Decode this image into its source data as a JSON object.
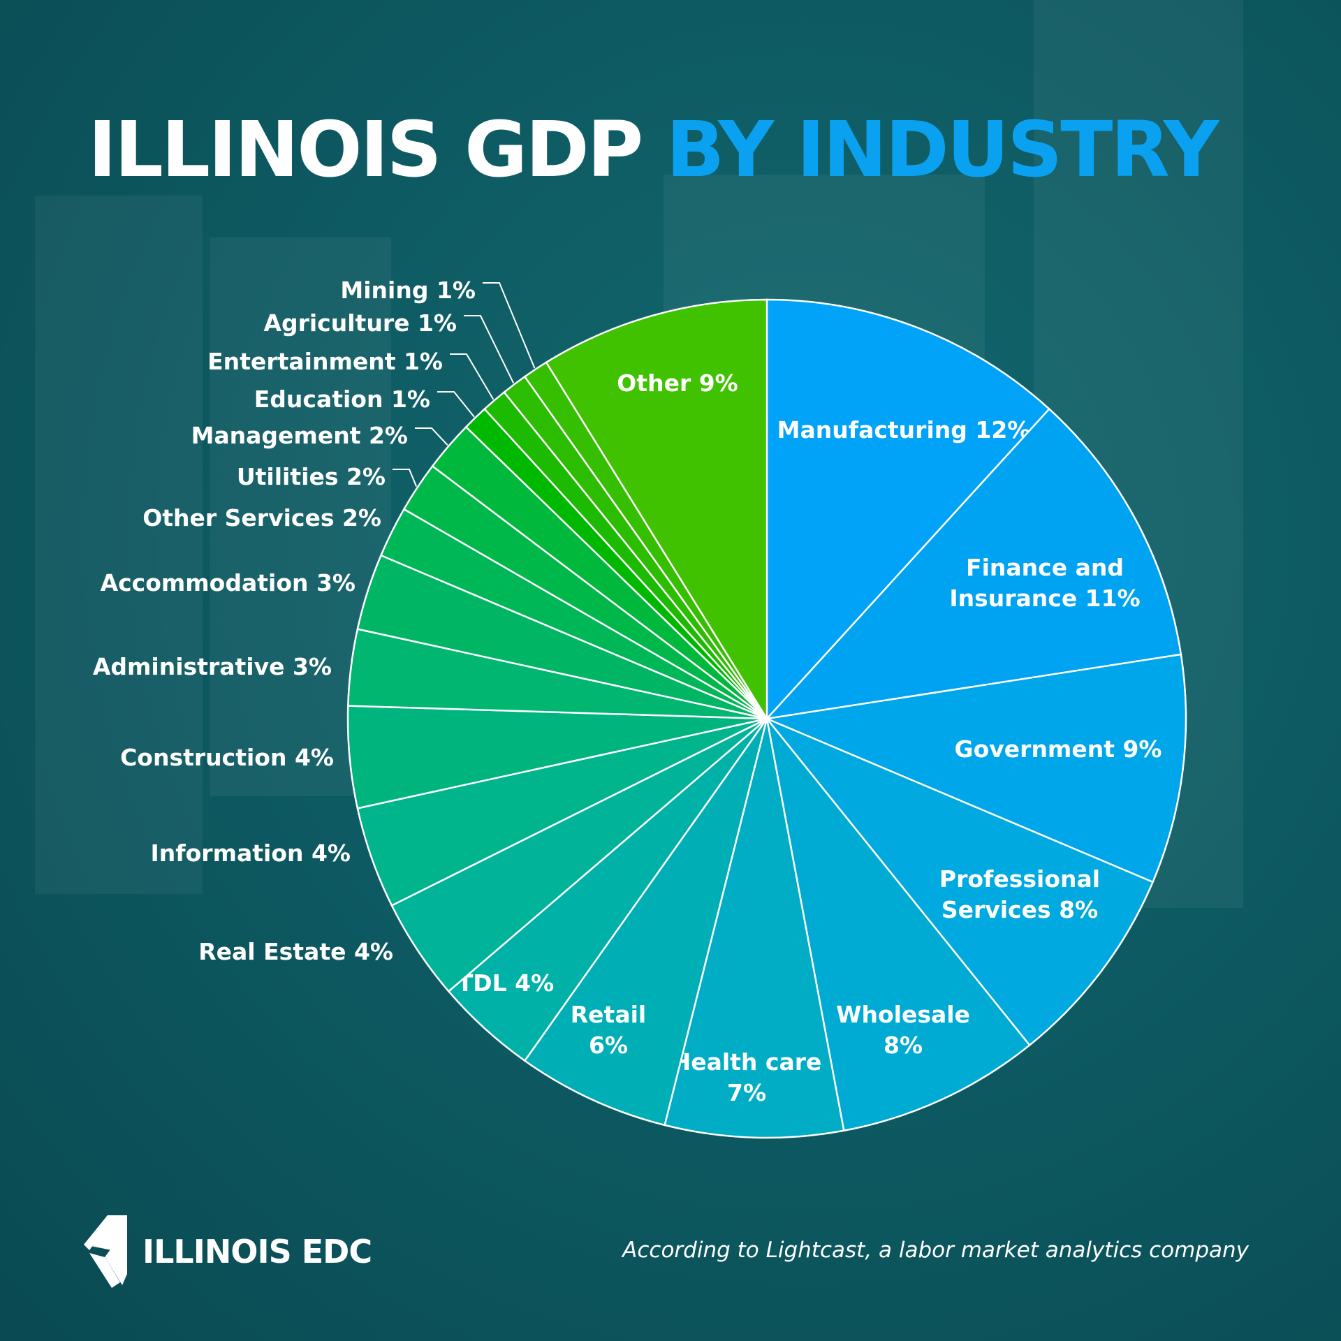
{
  "title": {
    "part1": "ILLINOIS GDP",
    "part2": "BY INDUSTRY",
    "part1_color": "#ffffff",
    "part2_color": "#0aa2f0"
  },
  "chart_data": {
    "type": "pie",
    "direction": "clockwise from top",
    "slices": [
      {
        "name": "Manufacturing",
        "label": [
          "Manufacturing 12%"
        ],
        "value": 12,
        "color": "#00a3f7",
        "placement": "inside"
      },
      {
        "name": "Finance and Insurance",
        "label": [
          "Finance and",
          "Insurance 11%"
        ],
        "value": 11,
        "color": "#00a3f2",
        "placement": "inside"
      },
      {
        "name": "Government",
        "label": [
          "Government 9%"
        ],
        "value": 9,
        "color": "#00a6ea",
        "placement": "inside"
      },
      {
        "name": "Professional Services",
        "label": [
          "Professional",
          "Services 8%"
        ],
        "value": 8,
        "color": "#00a9df",
        "placement": "inside"
      },
      {
        "name": "Wholesale",
        "label": [
          "Wholesale",
          "8%"
        ],
        "value": 8,
        "color": "#00abd3",
        "placement": "inside"
      },
      {
        "name": "Health care",
        "label": [
          "Health care",
          "7%"
        ],
        "value": 7,
        "color": "#00adc5",
        "placement": "inside"
      },
      {
        "name": "Retail",
        "label": [
          "Retail",
          "6%"
        ],
        "value": 6,
        "color": "#00afb6",
        "placement": "inside"
      },
      {
        "name": "TDL",
        "label": [
          "TDL 4%"
        ],
        "value": 4,
        "color": "#00b1a7",
        "placement": "inside"
      },
      {
        "name": "Real Estate",
        "label": [
          "Real Estate 4%"
        ],
        "value": 4,
        "color": "#00b399",
        "placement": "outside"
      },
      {
        "name": "Information",
        "label": [
          "Information 4%"
        ],
        "value": 4,
        "color": "#00b48b",
        "placement": "outside"
      },
      {
        "name": "Construction",
        "label": [
          "Construction 4%"
        ],
        "value": 4,
        "color": "#00b57d",
        "placement": "outside"
      },
      {
        "name": "Administrative",
        "label": [
          "Administrative 3%"
        ],
        "value": 3,
        "color": "#00b671",
        "placement": "outside"
      },
      {
        "name": "Accommodation",
        "label": [
          "Accommodation 3%"
        ],
        "value": 3,
        "color": "#00b664",
        "placement": "outside"
      },
      {
        "name": "Other Services",
        "label": [
          "Other Services 2%"
        ],
        "value": 2,
        "color": "#00b757",
        "placement": "outside"
      },
      {
        "name": "Utilities",
        "label": [
          "Utilities 2%"
        ],
        "value": 2,
        "color": "#00b84a",
        "placement": "outside-leader"
      },
      {
        "name": "Management",
        "label": [
          "Management 2%"
        ],
        "value": 2,
        "color": "#00b83b",
        "placement": "outside-leader"
      },
      {
        "name": "Education",
        "label": [
          "Education 1%"
        ],
        "value": 1,
        "color": "#00b800",
        "placement": "outside-leader"
      },
      {
        "name": "Entertainment",
        "label": [
          "Entertainment 1%"
        ],
        "value": 1,
        "color": "#1cba00",
        "placement": "outside-leader"
      },
      {
        "name": "Agriculture",
        "label": [
          "Agriculture 1%"
        ],
        "value": 1,
        "color": "#2cbc00",
        "placement": "outside-leader"
      },
      {
        "name": "Mining",
        "label": [
          "Mining 1%"
        ],
        "value": 1,
        "color": "#36be00",
        "placement": "outside-leader"
      },
      {
        "name": "Other",
        "label": [
          "Other 9%"
        ],
        "value": 9,
        "color": "#40c200",
        "placement": "inside"
      }
    ]
  },
  "footer": {
    "logo_text": "ILLINOIS EDC",
    "source": "According to Lightcast, a labor market analytics company"
  }
}
